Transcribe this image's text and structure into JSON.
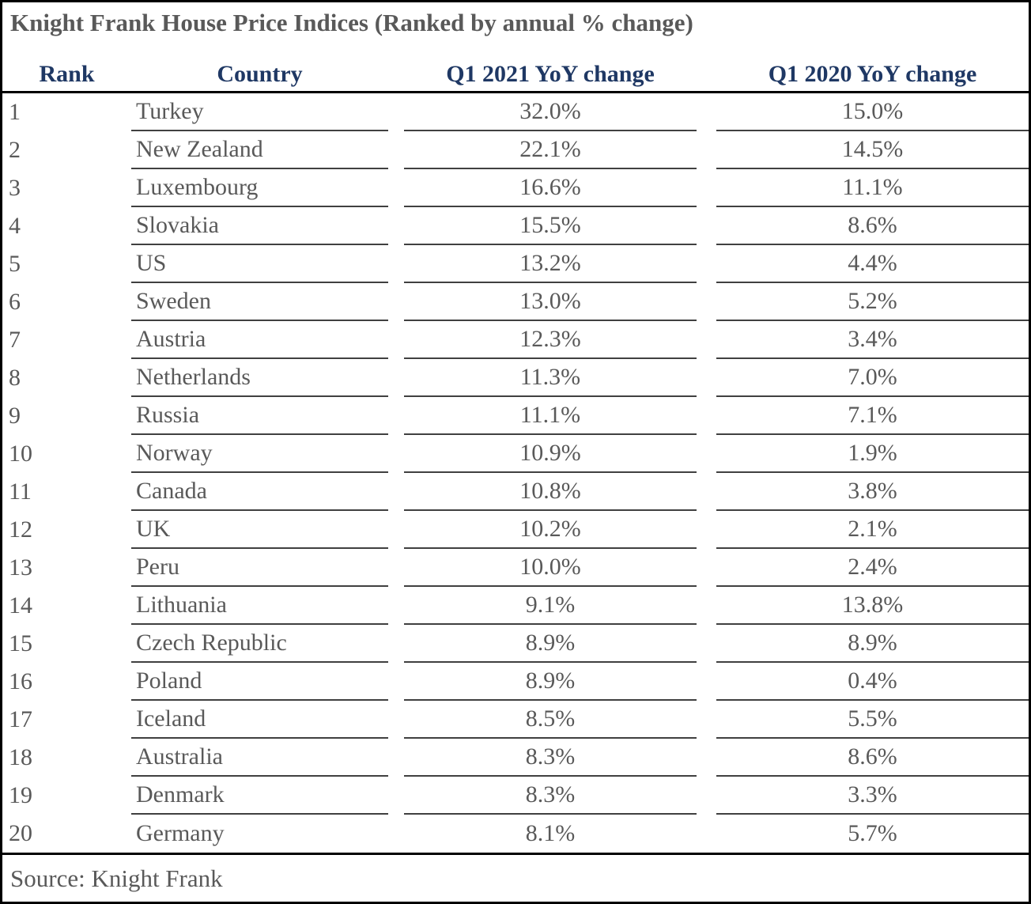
{
  "chart_data": {
    "type": "table",
    "title": "Knight Frank House Price Indices (Ranked by annual % change)",
    "columns": [
      "Rank",
      "Country",
      "Q1 2021 YoY change",
      "Q1 2020 YoY change"
    ],
    "rows": [
      {
        "rank": "1",
        "country": "Turkey",
        "q1_2021": "32.0%",
        "q1_2020": "15.0%"
      },
      {
        "rank": "2",
        "country": "New Zealand",
        "q1_2021": "22.1%",
        "q1_2020": "14.5%"
      },
      {
        "rank": "3",
        "country": "Luxembourg",
        "q1_2021": "16.6%",
        "q1_2020": "11.1%"
      },
      {
        "rank": "4",
        "country": "Slovakia",
        "q1_2021": "15.5%",
        "q1_2020": "8.6%"
      },
      {
        "rank": "5",
        "country": "US",
        "q1_2021": "13.2%",
        "q1_2020": "4.4%"
      },
      {
        "rank": "6",
        "country": "Sweden",
        "q1_2021": "13.0%",
        "q1_2020": "5.2%"
      },
      {
        "rank": "7",
        "country": "Austria",
        "q1_2021": "12.3%",
        "q1_2020": "3.4%"
      },
      {
        "rank": "8",
        "country": "Netherlands",
        "q1_2021": "11.3%",
        "q1_2020": "7.0%"
      },
      {
        "rank": "9",
        "country": "Russia",
        "q1_2021": "11.1%",
        "q1_2020": "7.1%"
      },
      {
        "rank": "10",
        "country": "Norway",
        "q1_2021": "10.9%",
        "q1_2020": "1.9%"
      },
      {
        "rank": "11",
        "country": "Canada",
        "q1_2021": "10.8%",
        "q1_2020": "3.8%"
      },
      {
        "rank": "12",
        "country": "UK",
        "q1_2021": "10.2%",
        "q1_2020": "2.1%"
      },
      {
        "rank": "13",
        "country": "Peru",
        "q1_2021": "10.0%",
        "q1_2020": "2.4%"
      },
      {
        "rank": "14",
        "country": "Lithuania",
        "q1_2021": "9.1%",
        "q1_2020": "13.8%"
      },
      {
        "rank": "15",
        "country": "Czech Republic",
        "q1_2021": "8.9%",
        "q1_2020": "8.9%"
      },
      {
        "rank": "16",
        "country": "Poland",
        "q1_2021": "8.9%",
        "q1_2020": "0.4%"
      },
      {
        "rank": "17",
        "country": "Iceland",
        "q1_2021": "8.5%",
        "q1_2020": "5.5%"
      },
      {
        "rank": "18",
        "country": "Australia",
        "q1_2021": "8.3%",
        "q1_2020": "8.6%"
      },
      {
        "rank": "19",
        "country": "Denmark",
        "q1_2021": "8.3%",
        "q1_2020": "3.3%"
      },
      {
        "rank": "20",
        "country": "Germany",
        "q1_2021": "8.1%",
        "q1_2020": "5.7%"
      }
    ],
    "source": "Source: Knight Frank",
    "layout_hints": {
      "value_alignment": "center",
      "country_alignment": "left",
      "grid": "horizontal underlines under Country and value columns only"
    }
  },
  "colors": {
    "header_text": "#1F3864",
    "title_text": "#595959",
    "body_text": "#595959",
    "row_line": "#404040",
    "frame_border": "#000000",
    "background": "#FFFFFF"
  }
}
